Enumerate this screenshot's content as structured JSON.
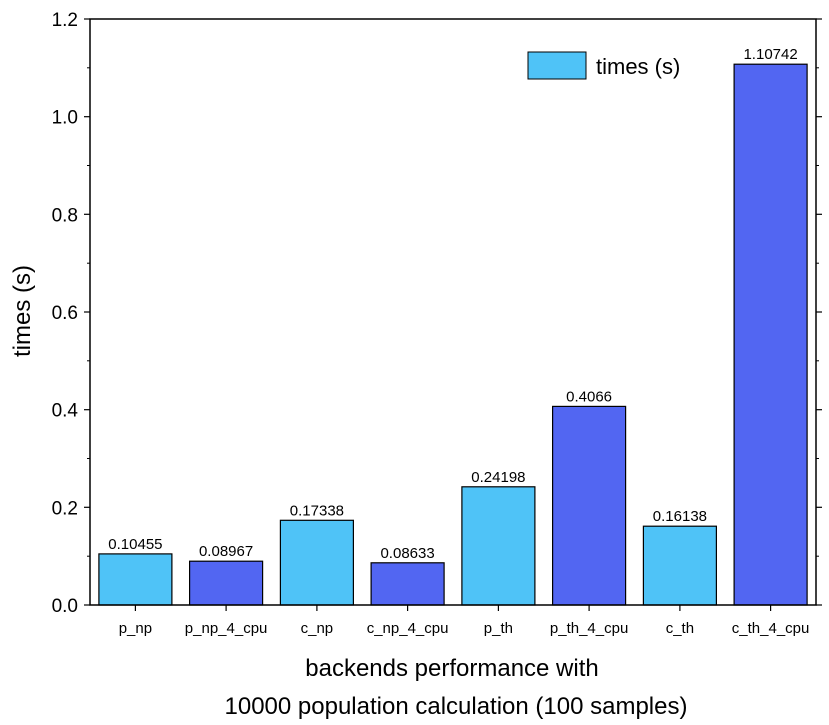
{
  "chart_data": {
    "type": "bar",
    "categories": [
      "p_np",
      "p_np_4_cpu",
      "c_np",
      "c_np_4_cpu",
      "p_th",
      "p_th_4_cpu",
      "c_th",
      "c_th_4_cpu"
    ],
    "values": [
      0.10455,
      0.08967,
      0.17338,
      0.08633,
      0.24198,
      0.4066,
      0.16138,
      1.10742
    ],
    "data_labels": [
      "0.10455",
      "0.08967",
      "0.17338",
      "0.08633",
      "0.24198",
      "0.4066",
      "0.16138",
      "1.10742"
    ],
    "series_name": "times (s)",
    "title": "",
    "xlabel": "backends performance with",
    "xlabel_line2": "10000 population calculation (100 samples)",
    "ylabel": "times (s)",
    "ylim": [
      0,
      1.2
    ],
    "yticks": [
      "0.0",
      "0.2",
      "0.4",
      "0.6",
      "0.8",
      "1.0",
      "1.2"
    ],
    "legend_position": "top-right",
    "grid": false,
    "colors": {
      "light": "#4fc3f7",
      "dark": "#5266f2",
      "edge": "#000000",
      "legend": "#4fc3f7"
    }
  }
}
